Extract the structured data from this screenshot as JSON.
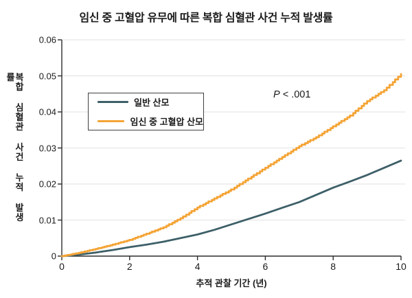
{
  "chart_data": {
    "type": "line",
    "title": "임신 중 고혈압 유무에 따른 복합 심혈관 사건 누적 발생률",
    "xlabel": "추적 관찰 기간 (년)",
    "ylabel": "복합 심혈관 사건 누적 발생률",
    "xlim": [
      0,
      10
    ],
    "ylim": [
      0,
      0.06
    ],
    "x_ticks": [
      0,
      2,
      4,
      6,
      8,
      10
    ],
    "x_tick_labels": [
      "0",
      "2",
      "4",
      "6",
      "8",
      "10"
    ],
    "y_ticks": [
      0,
      0.01,
      0.02,
      0.03,
      0.04,
      0.05,
      0.06
    ],
    "y_tick_labels": [
      "0",
      "0.01",
      "0.02",
      "0.03",
      "0.04",
      "0.05",
      "0.06"
    ],
    "grid": "horizontal-light",
    "legend_position": "inside-upper-left",
    "x": [
      0,
      0.5,
      1,
      1.5,
      2,
      2.5,
      3,
      3.5,
      4,
      4.5,
      5,
      5.5,
      6,
      6.5,
      7,
      7.5,
      8,
      8.5,
      9,
      9.5,
      10
    ],
    "series": [
      {
        "name": "일반 산모",
        "color": "#3D5F68",
        "style": "smooth",
        "values": [
          0,
          0.0004,
          0.001,
          0.0017,
          0.0025,
          0.0032,
          0.004,
          0.005,
          0.006,
          0.0073,
          0.0088,
          0.0103,
          0.0118,
          0.0134,
          0.015,
          0.017,
          0.019,
          0.0207,
          0.0225,
          0.0245,
          0.0265
        ]
      },
      {
        "name": "임신 중 고혈압 산모",
        "color": "#F4A436",
        "style": "step",
        "values": [
          0,
          0.0009,
          0.002,
          0.0032,
          0.0045,
          0.0062,
          0.008,
          0.0105,
          0.0135,
          0.016,
          0.0185,
          0.0215,
          0.0245,
          0.0275,
          0.0305,
          0.033,
          0.036,
          0.039,
          0.043,
          0.046,
          0.0505
        ]
      }
    ],
    "annotation": "P < .001"
  },
  "annotation": {
    "p": "P",
    "rest": " < .001"
  },
  "colors": {
    "grid": "#e2e2e2",
    "axis": "#2b2b2b",
    "text": "#1a1a1a"
  }
}
